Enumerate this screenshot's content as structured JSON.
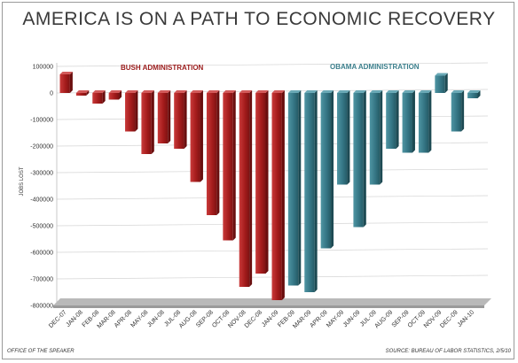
{
  "chart_data": {
    "type": "bar",
    "title": "AMERICA IS ON A PATH TO ECONOMIC RECOVERY",
    "ylabel": "JOBS LOST",
    "ylim": [
      -800000,
      100000
    ],
    "yticks": [
      100000,
      0,
      -100000,
      -200000,
      -300000,
      -400000,
      -500000,
      -600000,
      -700000,
      -800000
    ],
    "ytick_labels": [
      "100000",
      "0",
      "-100000",
      "-200000",
      "-300000",
      "-400000",
      "-500000",
      "-600000",
      "-700000",
      "-800000"
    ],
    "grid": true,
    "categories": [
      "DEC-07",
      "JAN-08",
      "FEB-08",
      "MAR-08",
      "APR-08",
      "MAY-08",
      "JUN-08",
      "JUL-08",
      "AUG-08",
      "SEP-08",
      "OCT-08",
      "NOV-08",
      "DEC-08",
      "JAN-09",
      "FEB-09",
      "MAR-09",
      "APR-09",
      "MAY-09",
      "JUN-09",
      "JUL-09",
      "AUG-09",
      "SEP-09",
      "OCT-09",
      "NOV-09",
      "DEC-09",
      "JAN-10"
    ],
    "values": [
      70000,
      -10000,
      -40000,
      -25000,
      -145000,
      -230000,
      -190000,
      -210000,
      -335000,
      -460000,
      -555000,
      -730000,
      -680000,
      -780000,
      -725000,
      -750000,
      -585000,
      -345000,
      -505000,
      -345000,
      -210000,
      -225000,
      -225000,
      65000,
      -145000,
      -20000
    ],
    "series_colors": [
      "#b22222",
      "#b22222",
      "#b22222",
      "#b22222",
      "#b22222",
      "#b22222",
      "#b22222",
      "#b22222",
      "#b22222",
      "#b22222",
      "#b22222",
      "#b22222",
      "#b22222",
      "#b22222",
      "#3c7f8c",
      "#3c7f8c",
      "#3c7f8c",
      "#3c7f8c",
      "#3c7f8c",
      "#3c7f8c",
      "#3c7f8c",
      "#3c7f8c",
      "#3c7f8c",
      "#3c7f8c",
      "#3c7f8c",
      "#3c7f8c"
    ],
    "annotations": [
      {
        "text": "BUSH ADMINISTRATION",
        "color": "#9b1b1b"
      },
      {
        "text": "OBAMA ADMINISTRATION",
        "color": "#3c7f8c"
      }
    ]
  },
  "footer": {
    "left": "OFFICE OF THE SPEAKER",
    "right": "SOURCE: BUREAU OF LABOR STATISTICS, 2/5/10"
  }
}
